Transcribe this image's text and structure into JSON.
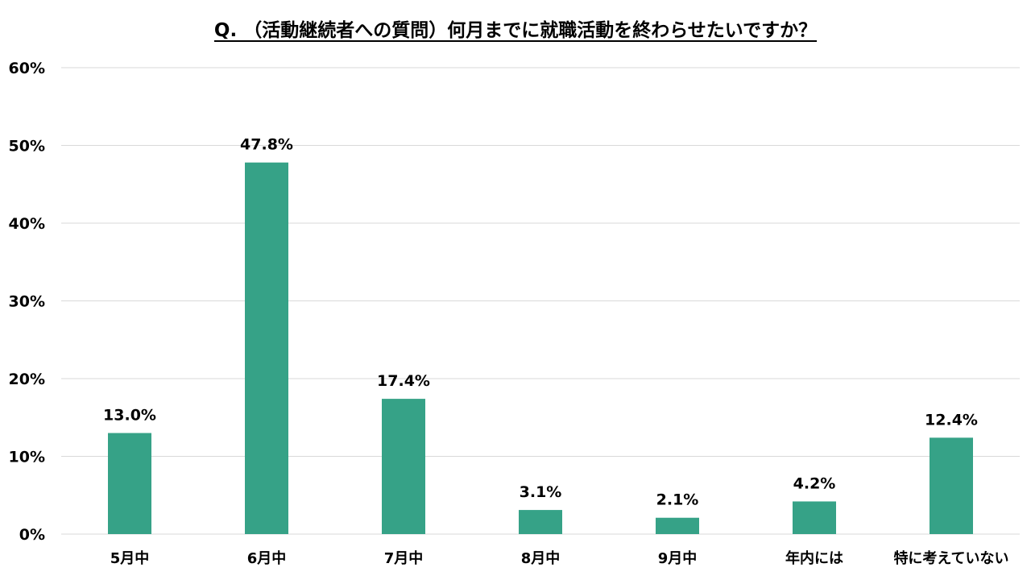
{
  "chart_data": {
    "type": "bar",
    "title": "Q. （活動継続者への質問）何月までに就職活動を終わらせたいですか？",
    "categories": [
      "5月中",
      "6月中",
      "7月中",
      "8月中",
      "9月中",
      "年内には",
      "特に考えていない"
    ],
    "values": [
      13.0,
      47.8,
      17.4,
      3.1,
      2.1,
      4.2,
      12.4
    ],
    "data_labels": [
      "13.0%",
      "47.8%",
      "17.4%",
      "3.1%",
      "2.1%",
      "4.2%",
      "12.4%"
    ],
    "y_ticks": [
      0,
      10,
      20,
      30,
      40,
      50,
      60
    ],
    "y_tick_labels": [
      "0%",
      "10%",
      "20%",
      "30%",
      "40%",
      "50%",
      "60%"
    ],
    "ylim": [
      0,
      60
    ],
    "xlabel": "",
    "ylabel": "",
    "grid": true,
    "legend": "none",
    "bar_color": "#36a287",
    "grid_color": "#d9d9d9"
  }
}
